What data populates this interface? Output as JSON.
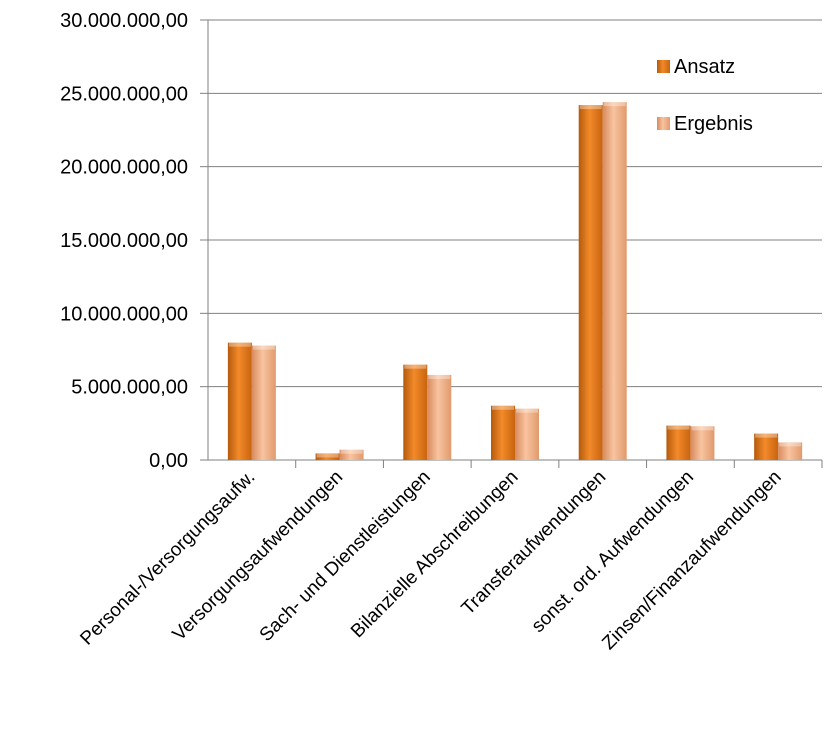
{
  "chart_data": {
    "type": "bar",
    "categories": [
      "Personal-/Versorgungsaufw.",
      "Versorgungsaufwendungen",
      "Sach- und Dienstleistungen",
      "Bilanzielle Abschreibungen",
      "Transferaufwendungen",
      "sonst. ord. Aufwendungen",
      "Zinsen/Finanzaufwendungen"
    ],
    "series": [
      {
        "name": "Ansatz",
        "color": "#e8771c",
        "values": [
          8000000,
          450000,
          6500000,
          3700000,
          24200000,
          2350000,
          1800000
        ]
      },
      {
        "name": "Ergebnis",
        "color": "#f0a878",
        "values": [
          7800000,
          700000,
          5800000,
          3500000,
          24400000,
          2300000,
          1200000
        ]
      }
    ],
    "ylim": [
      0,
      30000000
    ],
    "yticks": [
      0,
      5000000,
      10000000,
      15000000,
      20000000,
      25000000,
      30000000
    ],
    "ytick_labels": [
      "0,00",
      "5.000.000,00",
      "10.000.000,00",
      "15.000.000,00",
      "20.000.000,00",
      "25.000.000,00",
      "30.000.000,00"
    ],
    "grid": true,
    "legend_position": "top-right"
  }
}
